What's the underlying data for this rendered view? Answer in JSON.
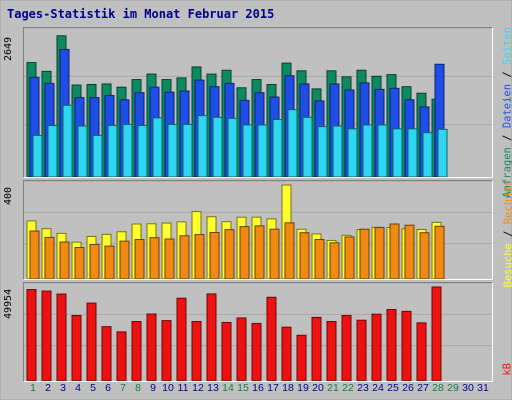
{
  "title": "Tages-Statistik im Monat Februar 2015",
  "panels": {
    "top": {
      "ymax_label": "2649",
      "right_labels": [
        "Anfragen",
        "Dateien",
        "Seiten"
      ]
    },
    "mid": {
      "ymax_label": "400",
      "right_labels": [
        "Besuche",
        "Rechner"
      ]
    },
    "bot": {
      "ymax_label": "49954",
      "right_labels": [
        "kB"
      ]
    }
  },
  "label_separator": " / ",
  "colors": {
    "anfragen": "#0e8a62",
    "dateien": "#1e4ee6",
    "seiten": "#2fd6f0",
    "besuche": "#ffff2a",
    "rechner": "#f08a12",
    "kb": "#ee1111",
    "weekend_day": "#157a4a",
    "weekday": "#00008b",
    "title": "#00008b"
  },
  "chart_data": [
    {
      "type": "bar",
      "categories": [
        "1",
        "2",
        "3",
        "4",
        "5",
        "6",
        "7",
        "8",
        "9",
        "10",
        "11",
        "12",
        "13",
        "14",
        "15",
        "16",
        "17",
        "18",
        "19",
        "20",
        "21",
        "22",
        "23",
        "24",
        "25",
        "26",
        "27",
        "28",
        "29",
        "30",
        "31"
      ],
      "ylim": [
        0,
        2649
      ],
      "series": [
        {
          "name": "Anfragen",
          "values": [
            2090,
            1930,
            2580,
            1680,
            1690,
            1700,
            1640,
            1780,
            1880,
            1780,
            1810,
            2010,
            1880,
            1950,
            1630,
            1780,
            1690,
            2080,
            1940,
            1610,
            1940,
            1830,
            1950,
            1840,
            1870,
            1650,
            1530,
            1420,
            null,
            null,
            null
          ]
        },
        {
          "name": "Dateien",
          "values": [
            1820,
            1710,
            2330,
            1450,
            1450,
            1490,
            1410,
            1540,
            1640,
            1550,
            1570,
            1770,
            1650,
            1710,
            1400,
            1540,
            1460,
            1850,
            1700,
            1390,
            1700,
            1590,
            1720,
            1600,
            1620,
            1410,
            1280,
            2060,
            null,
            null,
            null
          ]
        },
        {
          "name": "Seiten",
          "values": [
            760,
            940,
            1310,
            930,
            760,
            940,
            960,
            940,
            1080,
            960,
            960,
            1120,
            1090,
            1070,
            950,
            950,
            1050,
            1230,
            1090,
            920,
            930,
            880,
            950,
            950,
            880,
            880,
            810,
            870,
            null,
            null,
            null
          ]
        }
      ]
    },
    {
      "type": "bar",
      "categories": [
        "1",
        "2",
        "3",
        "4",
        "5",
        "6",
        "7",
        "8",
        "9",
        "10",
        "11",
        "12",
        "13",
        "14",
        "15",
        "16",
        "17",
        "18",
        "19",
        "20",
        "21",
        "22",
        "23",
        "24",
        "25",
        "26",
        "27",
        "28",
        "29",
        "30",
        "31"
      ],
      "ylim": [
        0,
        400
      ],
      "series": [
        {
          "name": "Besuche",
          "values": [
            247,
            214,
            194,
            157,
            181,
            190,
            201,
            234,
            235,
            238,
            243,
            287,
            265,
            244,
            263,
            263,
            256,
            400,
            212,
            192,
            164,
            186,
            210,
            220,
            219,
            214,
            211,
            241,
            null,
            null,
            null
          ]
        },
        {
          "name": "Rechner",
          "values": [
            204,
            177,
            157,
            134,
            147,
            140,
            161,
            168,
            176,
            170,
            184,
            189,
            198,
            210,
            223,
            226,
            212,
            239,
            197,
            168,
            154,
            179,
            212,
            219,
            234,
            229,
            197,
            224,
            null,
            null,
            null
          ]
        }
      ]
    },
    {
      "type": "bar",
      "categories": [
        "1",
        "2",
        "3",
        "4",
        "5",
        "6",
        "7",
        "8",
        "9",
        "10",
        "11",
        "12",
        "13",
        "14",
        "15",
        "16",
        "17",
        "18",
        "19",
        "20",
        "21",
        "22",
        "23",
        "24",
        "25",
        "26",
        "27",
        "28",
        "29",
        "30",
        "31"
      ],
      "ylim": [
        0,
        49954
      ],
      "series": [
        {
          "name": "kB",
          "values": [
            48600,
            47800,
            46200,
            34800,
            41400,
            28900,
            26100,
            31600,
            35600,
            32100,
            44000,
            31600,
            46300,
            31100,
            33500,
            30600,
            44500,
            28600,
            24300,
            33800,
            31600,
            34800,
            32300,
            35500,
            38000,
            37000,
            30900,
            49954,
            null,
            null,
            null
          ]
        }
      ]
    }
  ],
  "weekend_days": [
    1,
    7,
    8,
    14,
    15,
    21,
    22,
    28,
    29
  ]
}
